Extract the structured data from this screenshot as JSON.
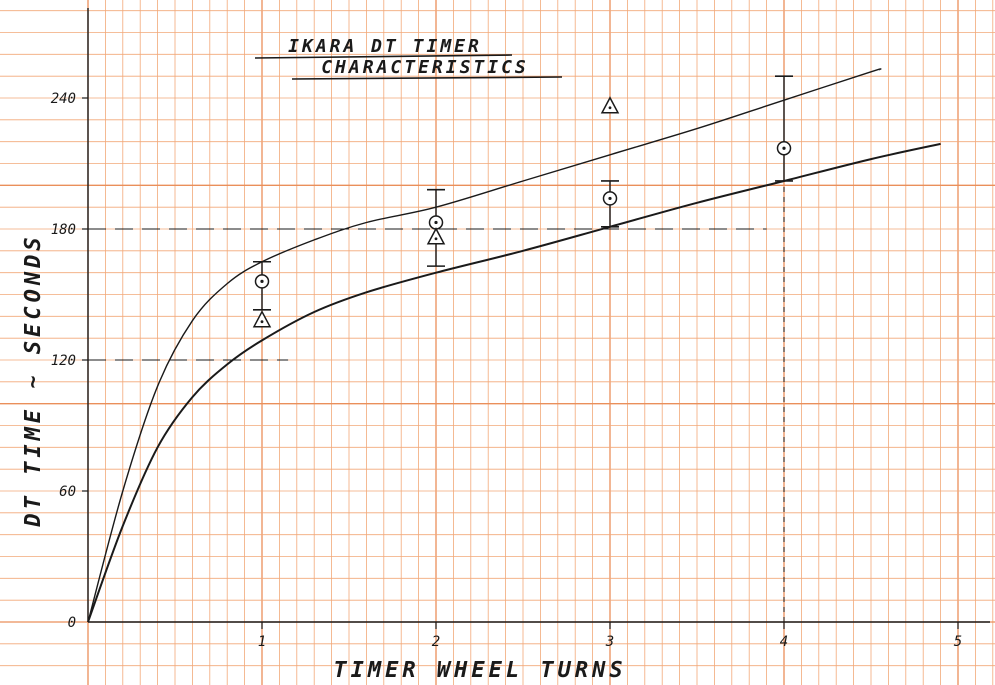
{
  "chart_data": {
    "type": "line",
    "title_line1": "IKARA DT TIMER",
    "title_line2": "CHARACTERISTICS",
    "xlabel": "TIMER WHEEL TURNS",
    "ylabel": "DT TIME ~ SECONDS",
    "xlim": [
      0,
      5
    ],
    "ylim": [
      0,
      240
    ],
    "x_ticks": [
      1,
      2,
      3,
      4,
      5
    ],
    "x_tick_labels": [
      "1",
      "2",
      "3",
      "4",
      "5"
    ],
    "y_ticks": [
      0,
      60,
      120,
      180,
      240
    ],
    "y_tick_labels": [
      "0",
      "60",
      "120",
      "180",
      "240"
    ],
    "grid": true,
    "series": [
      {
        "values_x": [
          0,
          0.2,
          0.4,
          0.6,
          0.8,
          1.0,
          1.3,
          1.6,
          2.0,
          2.5,
          3.0,
          3.5,
          4.0,
          4.5,
          4.55
        ],
        "values_y": [
          0,
          60,
          108,
          138,
          155,
          165,
          175,
          183,
          190,
          202,
          214,
          226,
          239,
          252,
          253
        ]
      },
      {
        "values_x": [
          0,
          0.2,
          0.4,
          0.6,
          0.8,
          1.0,
          1.3,
          1.6,
          2.0,
          2.5,
          3.0,
          3.5,
          4.0,
          4.5,
          4.9
        ],
        "values_y": [
          0,
          44,
          80,
          103,
          118,
          129,
          142,
          151,
          160,
          170,
          181,
          192,
          202,
          212,
          219
        ]
      }
    ],
    "error_bars": [
      {
        "x": 1,
        "low": 143,
        "high": 165
      },
      {
        "x": 2,
        "low": 163,
        "high": 198
      },
      {
        "x": 3,
        "low": 181,
        "high": 202
      },
      {
        "x": 4,
        "low": 202,
        "high": 250
      }
    ],
    "circle_points": [
      {
        "x": 1,
        "y": 156
      },
      {
        "x": 2,
        "y": 183
      },
      {
        "x": 3,
        "y": 194
      },
      {
        "x": 4,
        "y": 217
      }
    ],
    "triangle_points": [
      {
        "x": 1,
        "y": 138
      },
      {
        "x": 2,
        "y": 176
      },
      {
        "x": 3,
        "y": 236
      }
    ],
    "reference_lines": [
      {
        "y": 180,
        "x_start": 0,
        "x_end": 3.9
      },
      {
        "y": 120,
        "x_start": 0,
        "x_end": 1.15
      },
      {
        "x": 4,
        "y_start": 0,
        "y_end": 202
      }
    ],
    "colors": {
      "paper": "#ffffff",
      "grid": "#f2a878",
      "grid_major": "#ea8f5a",
      "ink": "#1a1a1a"
    }
  }
}
